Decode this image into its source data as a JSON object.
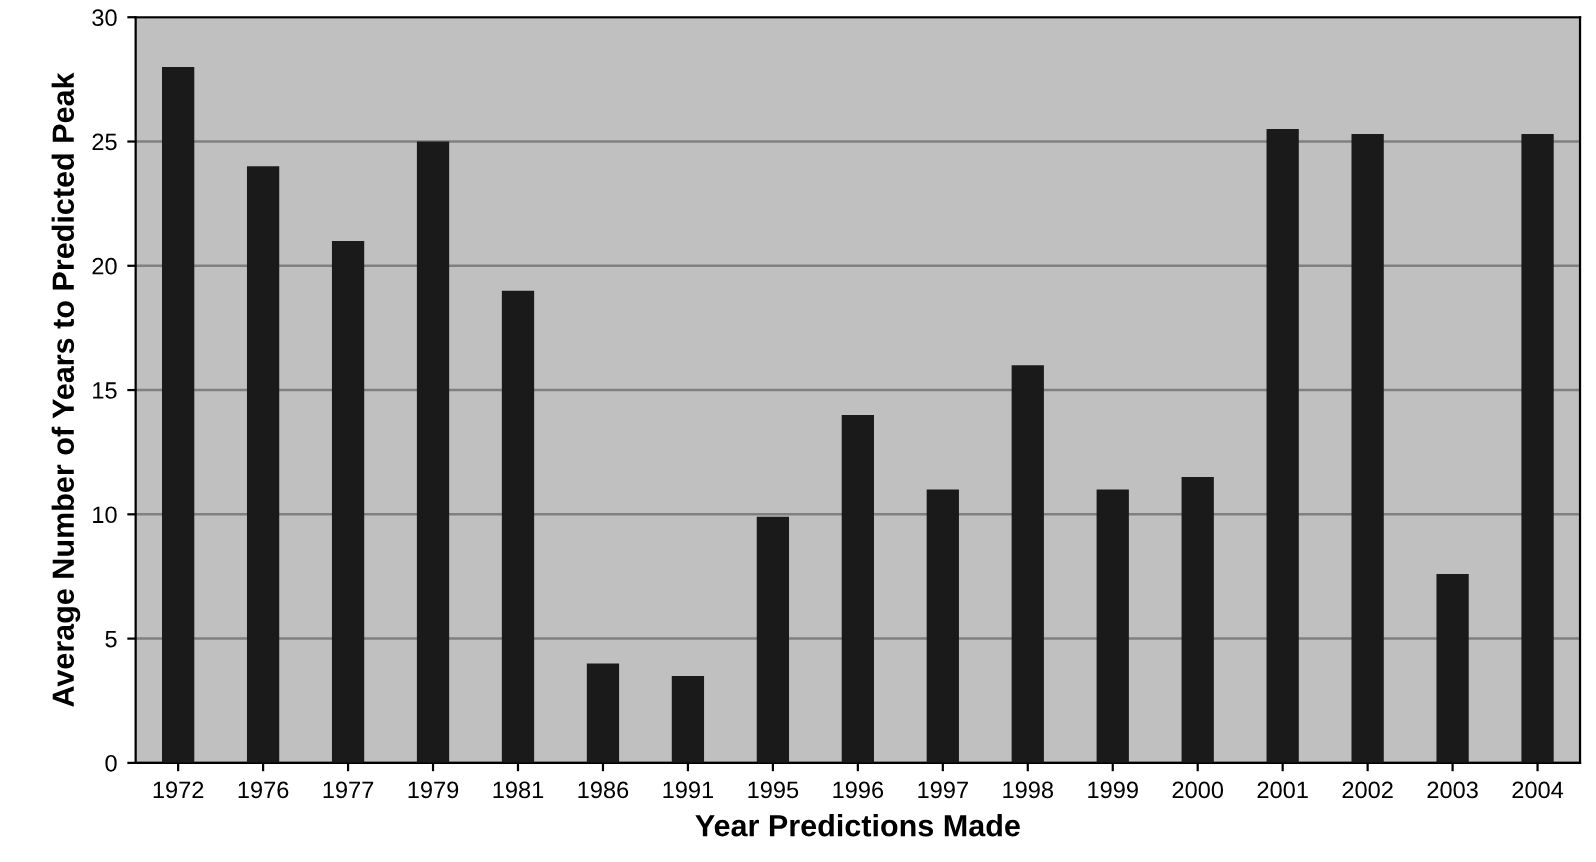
{
  "chart_data": {
    "type": "bar",
    "xlabel": "Year Predictions Made",
    "ylabel": "Average Number of Years to Predicted Peak",
    "categories": [
      "1972",
      "1976",
      "1977",
      "1979",
      "1981",
      "1986",
      "1991",
      "1995",
      "1996",
      "1997",
      "1998",
      "1999",
      "2000",
      "2001",
      "2002",
      "2003",
      "2004"
    ],
    "values": [
      28,
      24,
      21,
      25,
      19,
      4,
      3.5,
      9.9,
      14,
      11,
      16,
      11,
      11.5,
      25.5,
      25.3,
      7.6,
      25.3
    ],
    "color": "#1a1a1a",
    "ylim": [
      0,
      30
    ],
    "yticks": [
      0,
      5,
      10,
      15,
      20,
      25,
      30
    ],
    "grid": "y",
    "legend": false
  }
}
